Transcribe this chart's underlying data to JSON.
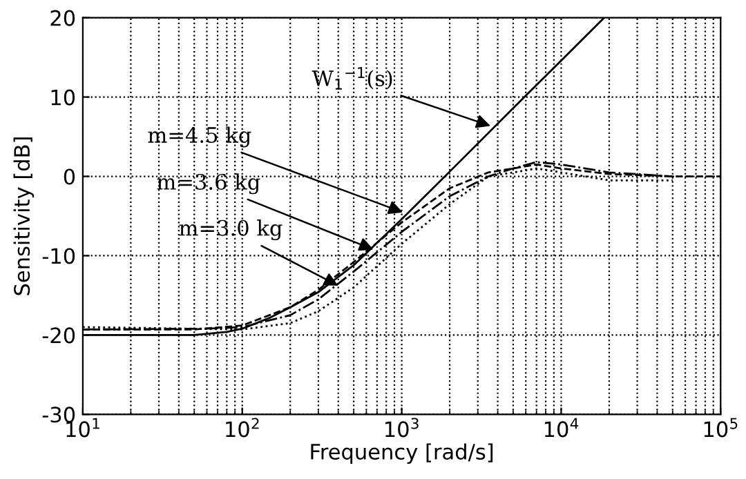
{
  "chart_data": {
    "type": "line",
    "xlabel": "Frequency [rad/s]",
    "ylabel": "Sensitivity [dB]",
    "log": "x",
    "xlim": [
      10,
      100000
    ],
    "ylim": [
      -30,
      20
    ],
    "xticks": [
      {
        "value": 10,
        "label": "10$^{1}$"
      },
      {
        "value": 100,
        "label": "10$^{2}$"
      },
      {
        "value": 1000,
        "label": "10$^{3}$"
      },
      {
        "value": 10000,
        "label": "10$^{4}$"
      },
      {
        "value": 100000,
        "label": "10$^{5}$"
      }
    ],
    "yticks": [
      -30,
      -20,
      -10,
      0,
      10,
      20
    ],
    "grid": true,
    "series": [
      {
        "color": "#000000",
        "line_style": "solid",
        "x": [
          10,
          50,
          80,
          100,
          150,
          200,
          300,
          500,
          1000,
          2000,
          5000,
          10000,
          18600
        ],
        "values": [
          -20,
          -20,
          -19.6,
          -19.2,
          -17.8,
          -16.5,
          -14.6,
          -11.2,
          -5.4,
          0.6,
          8.6,
          14.6,
          20
        ]
      },
      {
        "color": "#000000",
        "line_style": "dashed",
        "x": [
          10,
          50,
          100,
          200,
          300,
          500,
          1000,
          2000,
          3500,
          5000,
          7000,
          10000,
          20000,
          50000,
          100000
        ],
        "values": [
          -19.3,
          -19.3,
          -18.8,
          -16.5,
          -14.3,
          -10.8,
          -5.8,
          -1.5,
          0.5,
          1,
          1.5,
          1,
          0.3,
          0,
          0
        ]
      },
      {
        "color": "#000000",
        "line_style": "dashdot",
        "x": [
          10,
          60,
          100,
          200,
          300,
          500,
          1000,
          2000,
          3500,
          5000,
          7000,
          10000,
          20000,
          50000
        ],
        "values": [
          -19.3,
          -19.2,
          -19,
          -17.5,
          -15.5,
          -12,
          -7,
          -2.5,
          0,
          1,
          1.8,
          1.5,
          0.5,
          0
        ]
      },
      {
        "color": "#000000",
        "line_style": "dotted",
        "x": [
          10,
          100,
          200,
          300,
          500,
          1000,
          2000,
          3500,
          5000,
          7000,
          10000,
          20000,
          50000
        ],
        "values": [
          -19,
          -19.3,
          -18.5,
          -17,
          -14,
          -8.5,
          -3.5,
          0,
          0.5,
          1,
          0.5,
          -0.5,
          -0.5
        ]
      }
    ],
    "annotations": [
      {
        "text": "W$_{1}$$^{−1}$(s)",
        "x": 3800,
        "y": 6.2
      },
      {
        "text": "m=4.5 kg",
        "x": 1070,
        "y": -4.7
      },
      {
        "text": "m=3.6 kg",
        "x": 700,
        "y": -9.4
      },
      {
        "text": "m=3.0 kg",
        "x": 420,
        "y": -14
      }
    ]
  }
}
